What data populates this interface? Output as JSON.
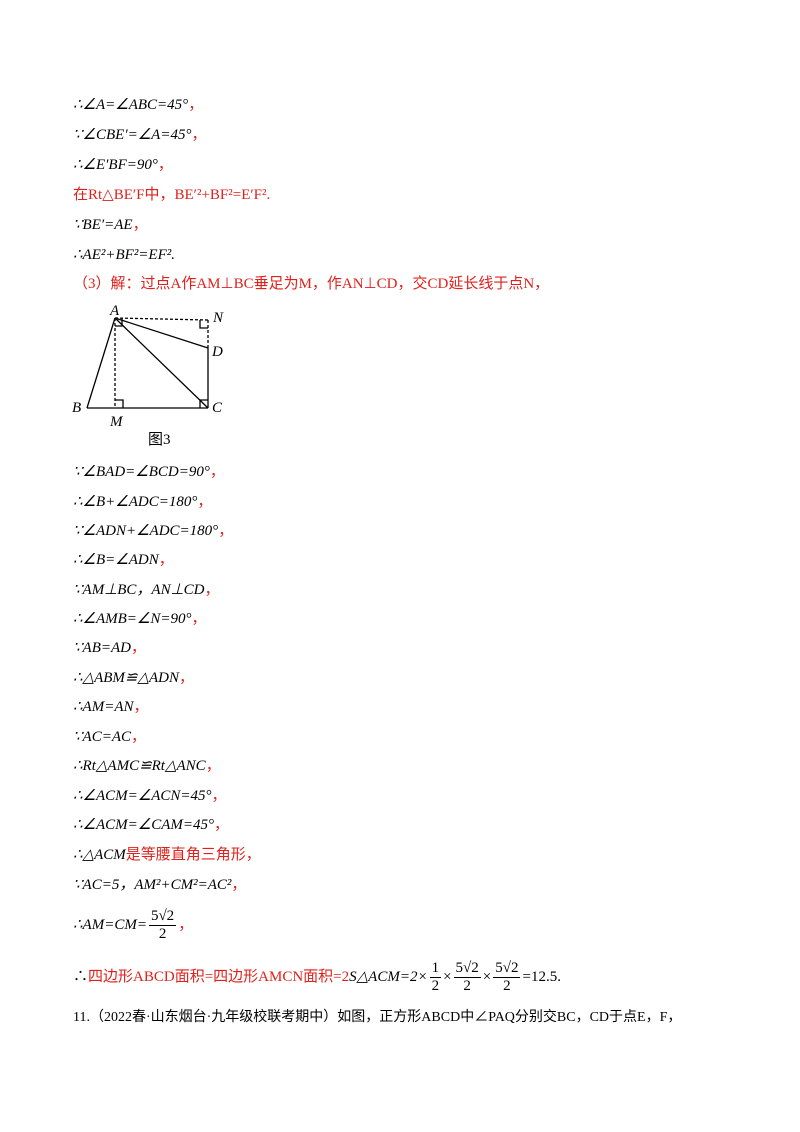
{
  "lines": [
    [
      "∴∠A=∠ABC=45°",
      "，"
    ],
    [
      "∵∠CBE′=∠A=45°",
      "，"
    ],
    [
      "∴∠E′BF=90°",
      "，"
    ],
    [
      "在Rt△BE′F中，BE′²+BF²=E′F²."
    ],
    [
      "∵BE′=AE",
      "，"
    ],
    [
      "∴AE²+BF²=EF²."
    ],
    [
      "（3）解：过点A作AM⊥BC垂足为M，作AN⊥CD，交CD延长线于点N，"
    ],
    [
      "∵∠BAD=∠BCD=90°",
      "，"
    ],
    [
      "∴∠B+∠ADC=180°",
      "，"
    ],
    [
      "∵∠ADN+∠ADC=180°",
      "，"
    ],
    [
      "∴∠B=∠ADN",
      "，"
    ],
    [
      "∵AM⊥BC，AN⊥CD",
      "，"
    ],
    [
      "∴∠AMB=∠N=90°",
      "，"
    ],
    [
      "∵AB=AD",
      "，"
    ],
    [
      "∴△ABM≌△ADN",
      "，"
    ],
    [
      "∴AM=AN",
      "，"
    ],
    [
      "∵AC=AC",
      "，"
    ],
    [
      "∴Rt△AMC≌Rt△ANC",
      "，"
    ],
    [
      "∴∠ACM=∠ACN=45°",
      "，"
    ],
    [
      "∴∠ACM=∠CAM=45°",
      "，"
    ],
    [
      "∴△ACM",
      "是等腰直角三角形，"
    ],
    [
      "∵AC=5，AM²+CM²=AC²",
      "，"
    ],
    [
      "∴AM=CM=",
      "5√2",
      "2",
      "，"
    ],
    [
      "∴",
      "四边形ABCD面积=四边形AMCN面积=2",
      "S△ACM=2×",
      "1",
      "2",
      "×",
      "5√2",
      "2",
      "×",
      "5√2",
      "2",
      "=12.5."
    ],
    [
      "11.（2022春·山东烟台·九年级校联考期中）如图，正方形ABCD中∠PAQ分别交BC，CD于点E，F，"
    ]
  ],
  "figure": {
    "labels": [
      "A",
      "N",
      "D",
      "B",
      "M",
      "C"
    ],
    "caption": "图3"
  }
}
